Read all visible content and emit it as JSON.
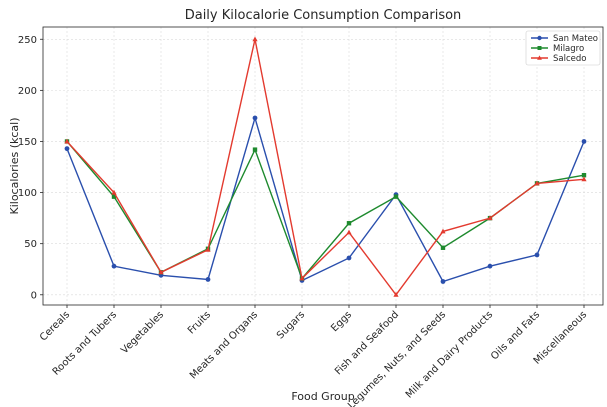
{
  "chart_data": {
    "type": "line",
    "title": "Daily Kilocalorie Consumption Comparison",
    "xlabel": "Food Group",
    "ylabel": "Kilocalories (kcal)",
    "ylim": [
      -10,
      262
    ],
    "yticks": [
      0,
      50,
      100,
      150,
      200,
      250
    ],
    "grid": true,
    "legend_position": "top-right",
    "categories": [
      "Cereals",
      "Roots and Tubers",
      "Vegetables",
      "Fruits",
      "Meats and Organs",
      "Sugars",
      "Eggs",
      "Fish and Seafood",
      "Legumes, Nuts, and Seeds",
      "Milk and Dairy Products",
      "Oils and Fats",
      "Miscellaneous"
    ],
    "series": [
      {
        "name": "San Mateo",
        "color": "#2a4fad",
        "marker": "circle",
        "values": [
          143,
          28,
          19,
          15,
          173,
          14,
          36,
          98,
          13,
          28,
          39,
          150
        ]
      },
      {
        "name": "Milagro",
        "color": "#1e8a2e",
        "marker": "square",
        "values": [
          150,
          96,
          22,
          45,
          142,
          16,
          70,
          96,
          46,
          75,
          109,
          117
        ]
      },
      {
        "name": "Salcedo",
        "color": "#e33a2f",
        "marker": "triangle",
        "values": [
          150,
          100,
          22,
          44,
          250,
          16,
          61,
          0,
          62,
          75,
          109,
          113
        ]
      }
    ]
  }
}
